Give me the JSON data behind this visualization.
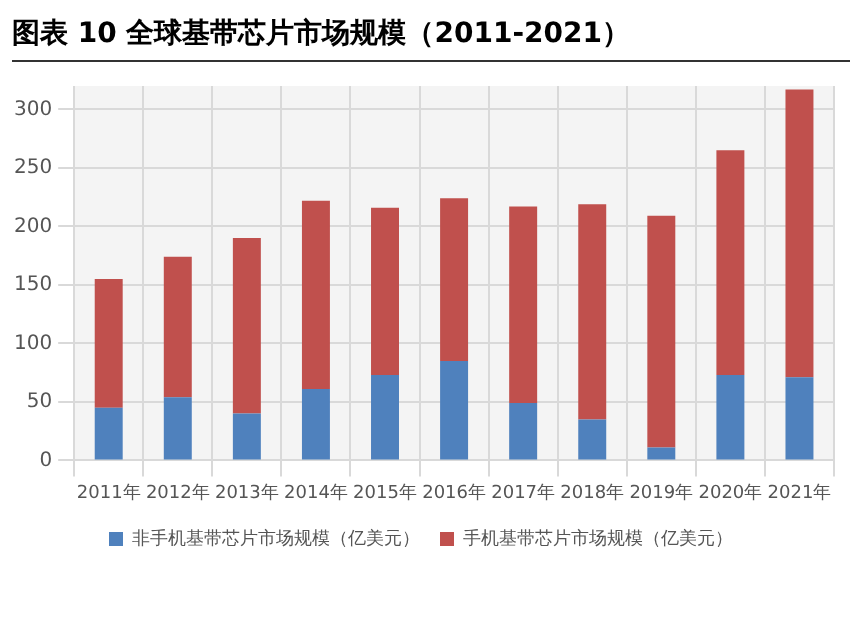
{
  "chart_data": {
    "type": "bar",
    "title": "图表 10 全球基带芯片市场规模（2011-2021）",
    "stacked": true,
    "categories": [
      "2011年",
      "2012年",
      "2013年",
      "2014年",
      "2015年",
      "2016年",
      "2017年",
      "2018年",
      "2019年",
      "2020年",
      "2021年"
    ],
    "series": [
      {
        "name": "非手机基带芯片市场规模（亿美元）",
        "color": "#4f81bd",
        "values": [
          45,
          54,
          40,
          61,
          73,
          85,
          49,
          35,
          11,
          73,
          71
        ]
      },
      {
        "name": "手机基带芯片市场规模（亿美元）",
        "color": "#c0504d",
        "values": [
          110,
          120,
          150,
          161,
          143,
          139,
          168,
          184,
          198,
          192,
          246
        ]
      }
    ],
    "ylim": [
      0,
      320
    ],
    "yticks": [
      0,
      50,
      100,
      150,
      200,
      250,
      300
    ],
    "grid": true,
    "legend": "bottom"
  }
}
